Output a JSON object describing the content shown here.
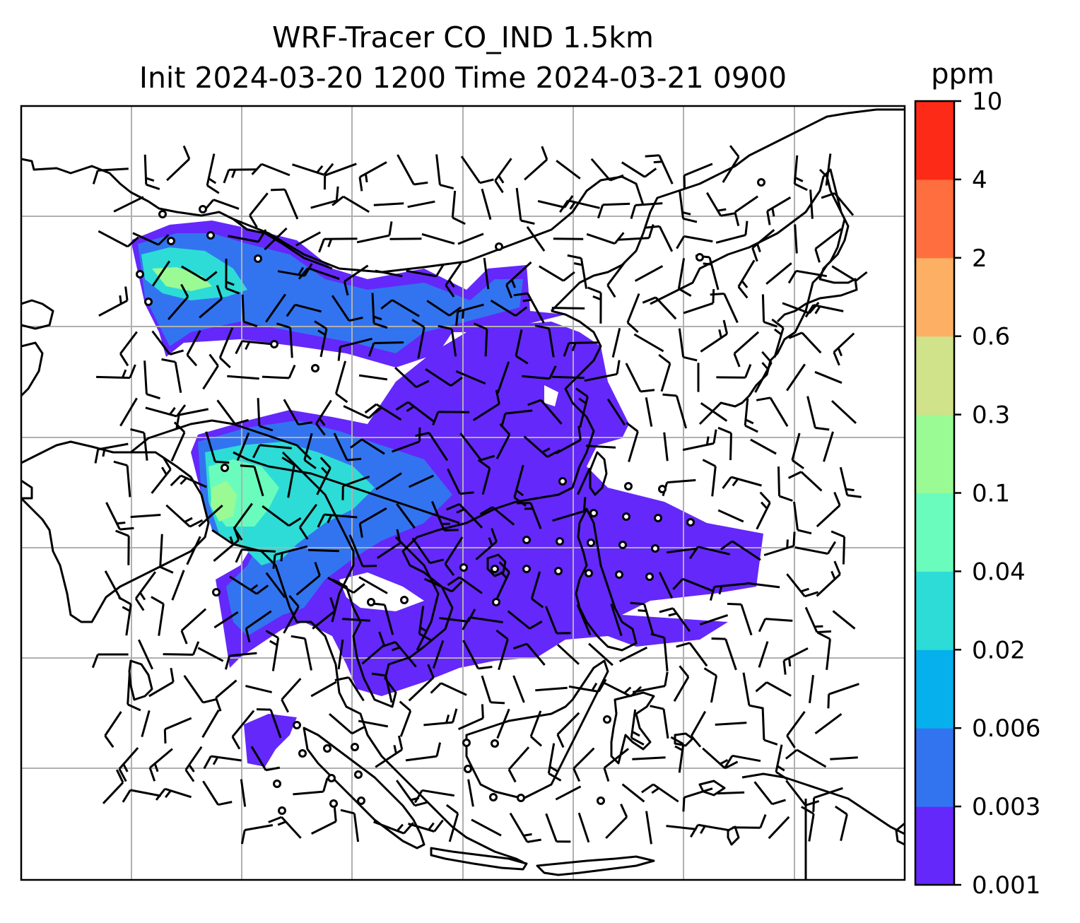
{
  "title": {
    "line1": "WRF-Tracer CO_IND 1.5km",
    "line2": "Init 2024-03-20 1200 Time 2024-03-21 0900"
  },
  "colorbar": {
    "units": "ppm",
    "levels": [
      "0.001",
      "0.003",
      "0.006",
      "0.02",
      "0.04",
      "0.1",
      "0.3",
      "0.6",
      "2",
      "4",
      "10"
    ],
    "colors": [
      "#6428fa",
      "#3274f0",
      "#05b0ec",
      "#2ddcd6",
      "#6afcbd",
      "#9afa94",
      "#d0e28a",
      "#fdb063",
      "#ff6e3e",
      "#fc2a17"
    ]
  },
  "map": {
    "gridlines": true,
    "features": [
      "coastlines",
      "country-borders",
      "wind-barbs",
      "calm-circles",
      "tracer-concentration"
    ]
  }
}
